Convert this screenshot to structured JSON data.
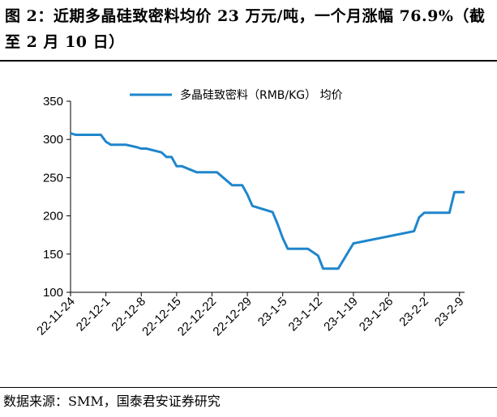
{
  "header": {
    "title": "图 2：近期多晶硅致密料均价 23 万元/吨，一个月涨幅 76.9%（截至 2 月 10 日）"
  },
  "footer": {
    "source": "数据来源：SMM，国泰君安证券研究"
  },
  "colors": {
    "series": "#1f86cc",
    "axis": "#000000"
  },
  "chart_data": {
    "type": "line",
    "title": "",
    "xlabel": "",
    "ylabel": "",
    "ylim": [
      100,
      350
    ],
    "yticks": [
      100,
      150,
      200,
      250,
      300,
      350
    ],
    "xlim": [
      "2022-11-24",
      "2023-02-10"
    ],
    "xtick_values": [
      "2022-11-24",
      "2022-12-01",
      "2022-12-08",
      "2022-12-15",
      "2022-12-22",
      "2022-12-29",
      "2023-01-05",
      "2023-01-12",
      "2023-01-19",
      "2023-01-26",
      "2023-02-02",
      "2023-02-09"
    ],
    "xtick_labels": [
      "22-11-24",
      "22-12-1",
      "22-12-8",
      "22-12-15",
      "22-12-22",
      "22-12-29",
      "23-1-5",
      "23-1-12",
      "23-1-19",
      "23-1-26",
      "23-2-2",
      "23-2-9"
    ],
    "grid": false,
    "legend": "top",
    "series": [
      {
        "name": "多晶硅致密料（RMB/KG） 均价",
        "x": [
          "2022-11-24",
          "2022-11-25",
          "2022-11-28",
          "2022-11-30",
          "2022-12-01",
          "2022-12-02",
          "2022-12-05",
          "2022-12-07",
          "2022-12-08",
          "2022-12-09",
          "2022-12-12",
          "2022-12-13",
          "2022-12-14",
          "2022-12-15",
          "2022-12-16",
          "2022-12-19",
          "2022-12-20",
          "2022-12-21",
          "2022-12-22",
          "2022-12-23",
          "2022-12-26",
          "2022-12-27",
          "2022-12-28",
          "2022-12-29",
          "2022-12-30",
          "2023-01-03",
          "2023-01-04",
          "2023-01-05",
          "2023-01-06",
          "2023-01-09",
          "2023-01-10",
          "2023-01-12",
          "2023-01-13",
          "2023-01-16",
          "2023-01-19",
          "2023-01-31",
          "2023-02-01",
          "2023-02-02",
          "2023-02-03",
          "2023-02-06",
          "2023-02-07",
          "2023-02-08",
          "2023-02-09",
          "2023-02-10"
        ],
        "values": [
          308,
          306,
          306,
          306,
          297,
          293,
          293,
          290,
          288,
          288,
          283,
          277,
          277,
          265,
          265,
          257,
          257,
          257,
          257,
          257,
          240,
          240,
          240,
          228,
          213,
          205,
          189,
          171,
          157,
          157,
          157,
          148,
          131,
          131,
          164,
          180,
          198,
          204,
          204,
          204,
          204,
          231,
          231,
          231
        ]
      }
    ]
  }
}
